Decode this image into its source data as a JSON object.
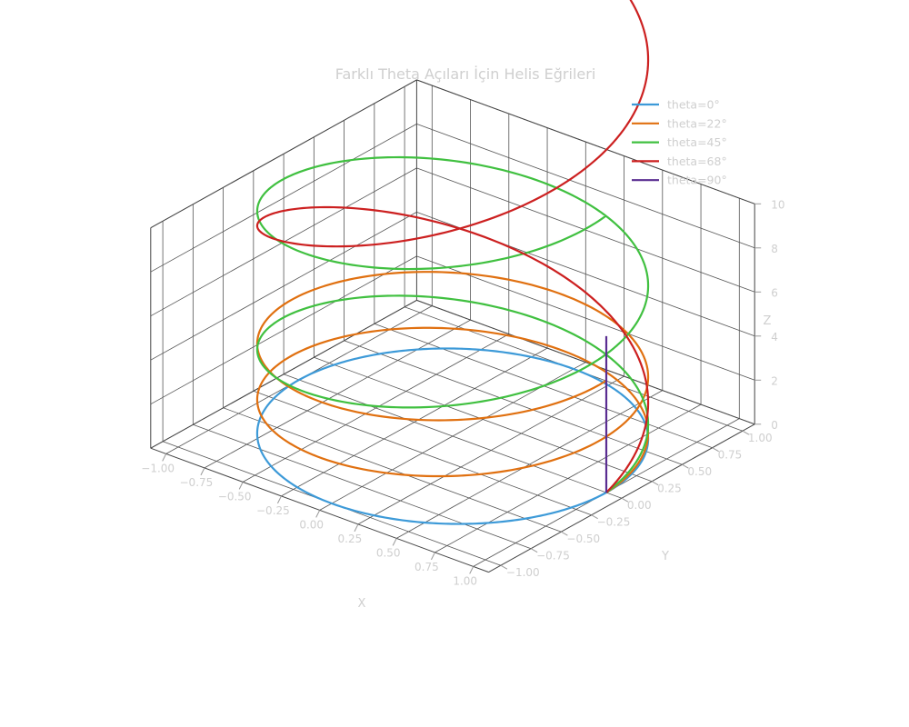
{
  "chart_data": {
    "type": "line3d",
    "title": "Farklı Theta Açıları İçin Helis Eğrileri",
    "xlabel": "X",
    "ylabel": "Y",
    "zlabel": "Z",
    "xlim": [
      -1.1,
      1.1
    ],
    "ylim": [
      -1.1,
      1.1
    ],
    "zlim": [
      0,
      10
    ],
    "xticks": [
      -1.0,
      -0.75,
      -0.5,
      -0.25,
      0.0,
      0.25,
      0.5,
      0.75,
      1.0
    ],
    "xtick_labels": [
      "−1.00",
      "−0.75",
      "−0.50",
      "−0.25",
      "0.00",
      "0.25",
      "0.50",
      "0.75",
      "1.00"
    ],
    "yticks": [
      -1.0,
      -0.75,
      -0.5,
      -0.25,
      0.0,
      0.25,
      0.5,
      0.75,
      1.0
    ],
    "ytick_labels": [
      "−1.00",
      "−0.75",
      "−0.50",
      "−0.25",
      "0.00",
      "0.25",
      "0.50",
      "0.75",
      "1.00"
    ],
    "zticks": [
      0,
      2,
      4,
      6,
      8,
      10
    ],
    "ztick_labels": [
      "0",
      "2",
      "4",
      "6",
      "8",
      "10"
    ],
    "grid": true,
    "legend_position": "top-right",
    "series": [
      {
        "name": "theta=0°",
        "theta_deg": 0,
        "color": "#3d9ad8",
        "t_max": 6.2832
      },
      {
        "name": "theta=22°",
        "theta_deg": 22,
        "color": "#e07010",
        "t_max": 12.5664
      },
      {
        "name": "theta=45°",
        "theta_deg": 45,
        "color": "#40c040",
        "t_max": 12.5664
      },
      {
        "name": "theta=68°",
        "theta_deg": 68,
        "color": "#cc2020",
        "t_max": 12.5664
      },
      {
        "name": "theta=90°",
        "theta_deg": 90,
        "color": "#5a2d91",
        "t_max": 12.5664
      }
    ]
  }
}
